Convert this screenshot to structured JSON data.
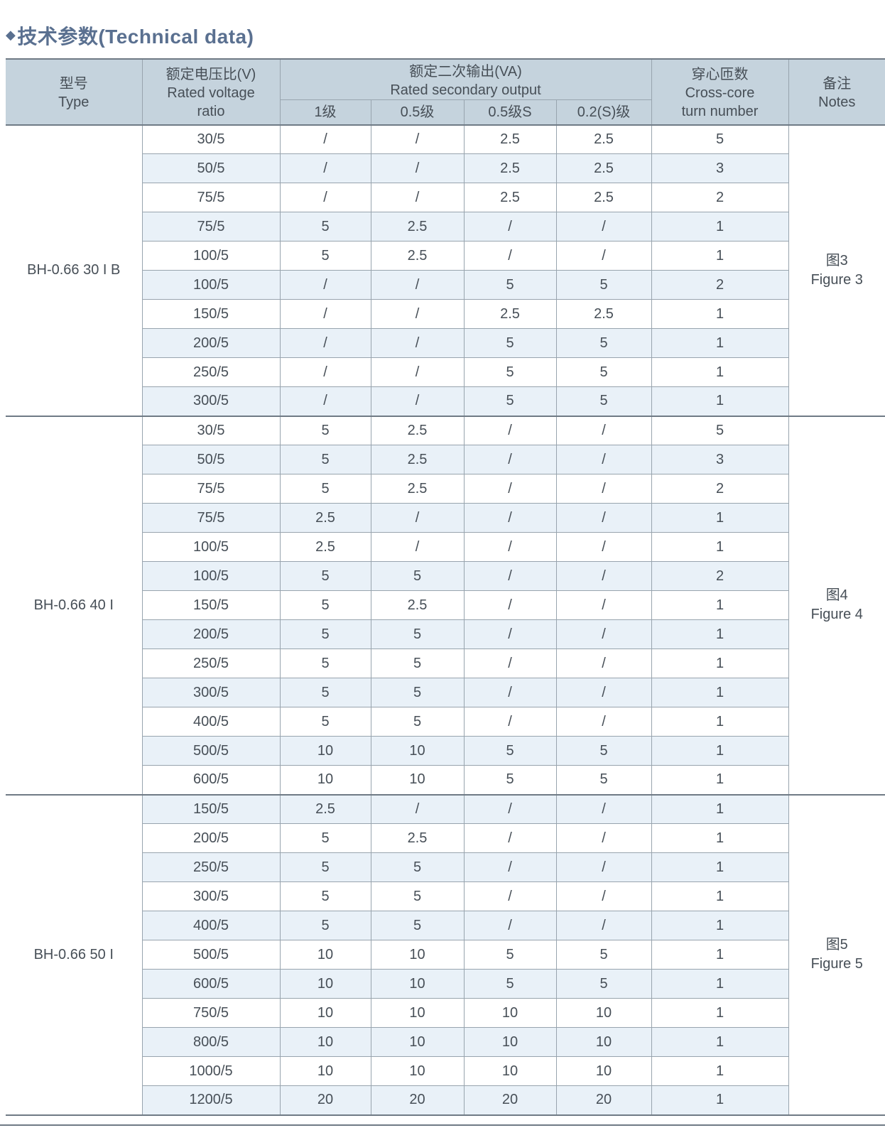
{
  "title": {
    "bullet": "◆",
    "text": "技术参数(Technical data)"
  },
  "colors": {
    "header_bg": "#c5d3dd",
    "stripe_bg": "#e9f1f8",
    "title_text": "#5a7090",
    "thin_border": "#98a4ae",
    "heavy_border": "#6f7a85",
    "cell_text": "#474f57"
  },
  "table": {
    "header": {
      "type_zh": "型号",
      "type_en": "Type",
      "ratio_zh": "额定电压比(V)",
      "ratio_en_1": "Rated voltage",
      "ratio_en_2": "ratio",
      "output_zh": "额定二次输出(VA)",
      "output_en": "Rated secondary output",
      "output_classes": [
        "1级",
        "0.5级",
        "0.5级S",
        "0.2(S)级"
      ],
      "turns_zh": "穿心匝数",
      "turns_en_1": "Cross-core",
      "turns_en_2": "turn number",
      "notes_zh": "备注",
      "notes_en": "Notes"
    },
    "groups": [
      {
        "type": "BH-0.66 30 I B",
        "note_zh": "图3",
        "note_en": "Figure 3",
        "rows": [
          [
            "30/5",
            "/",
            "/",
            "2.5",
            "2.5",
            "5"
          ],
          [
            "50/5",
            "/",
            "/",
            "2.5",
            "2.5",
            "3"
          ],
          [
            "75/5",
            "/",
            "/",
            "2.5",
            "2.5",
            "2"
          ],
          [
            "75/5",
            "5",
            "2.5",
            "/",
            "/",
            "1"
          ],
          [
            "100/5",
            "5",
            "2.5",
            "/",
            "/",
            "1"
          ],
          [
            "100/5",
            "/",
            "/",
            "5",
            "5",
            "2"
          ],
          [
            "150/5",
            "/",
            "/",
            "2.5",
            "2.5",
            "1"
          ],
          [
            "200/5",
            "/",
            "/",
            "5",
            "5",
            "1"
          ],
          [
            "250/5",
            "/",
            "/",
            "5",
            "5",
            "1"
          ],
          [
            "300/5",
            "/",
            "/",
            "5",
            "5",
            "1"
          ]
        ]
      },
      {
        "type": "BH-0.66 40 I",
        "note_zh": "图4",
        "note_en": "Figure 4",
        "rows": [
          [
            "30/5",
            "5",
            "2.5",
            "/",
            "/",
            "5"
          ],
          [
            "50/5",
            "5",
            "2.5",
            "/",
            "/",
            "3"
          ],
          [
            "75/5",
            "5",
            "2.5",
            "/",
            "/",
            "2"
          ],
          [
            "75/5",
            "2.5",
            "/",
            "/",
            "/",
            "1"
          ],
          [
            "100/5",
            "2.5",
            "/",
            "/",
            "/",
            "1"
          ],
          [
            "100/5",
            "5",
            "5",
            "/",
            "/",
            "2"
          ],
          [
            "150/5",
            "5",
            "2.5",
            "/",
            "/",
            "1"
          ],
          [
            "200/5",
            "5",
            "5",
            "/",
            "/",
            "1"
          ],
          [
            "250/5",
            "5",
            "5",
            "/",
            "/",
            "1"
          ],
          [
            "300/5",
            "5",
            "5",
            "/",
            "/",
            "1"
          ],
          [
            "400/5",
            "5",
            "5",
            "/",
            "/",
            "1"
          ],
          [
            "500/5",
            "10",
            "10",
            "5",
            "5",
            "1"
          ],
          [
            "600/5",
            "10",
            "10",
            "5",
            "5",
            "1"
          ]
        ]
      },
      {
        "type": "BH-0.66 50 I",
        "note_zh": "图5",
        "note_en": "Figure 5",
        "rows": [
          [
            "150/5",
            "2.5",
            "/",
            "/",
            "/",
            "1"
          ],
          [
            "200/5",
            "5",
            "2.5",
            "/",
            "/",
            "1"
          ],
          [
            "250/5",
            "5",
            "5",
            "/",
            "/",
            "1"
          ],
          [
            "300/5",
            "5",
            "5",
            "/",
            "/",
            "1"
          ],
          [
            "400/5",
            "5",
            "5",
            "/",
            "/",
            "1"
          ],
          [
            "500/5",
            "10",
            "10",
            "5",
            "5",
            "1"
          ],
          [
            "600/5",
            "10",
            "10",
            "5",
            "5",
            "1"
          ],
          [
            "750/5",
            "10",
            "10",
            "10",
            "10",
            "1"
          ],
          [
            "800/5",
            "10",
            "10",
            "10",
            "10",
            "1"
          ],
          [
            "1000/5",
            "10",
            "10",
            "10",
            "10",
            "1"
          ],
          [
            "1200/5",
            "20",
            "20",
            "20",
            "20",
            "1"
          ]
        ]
      }
    ]
  }
}
